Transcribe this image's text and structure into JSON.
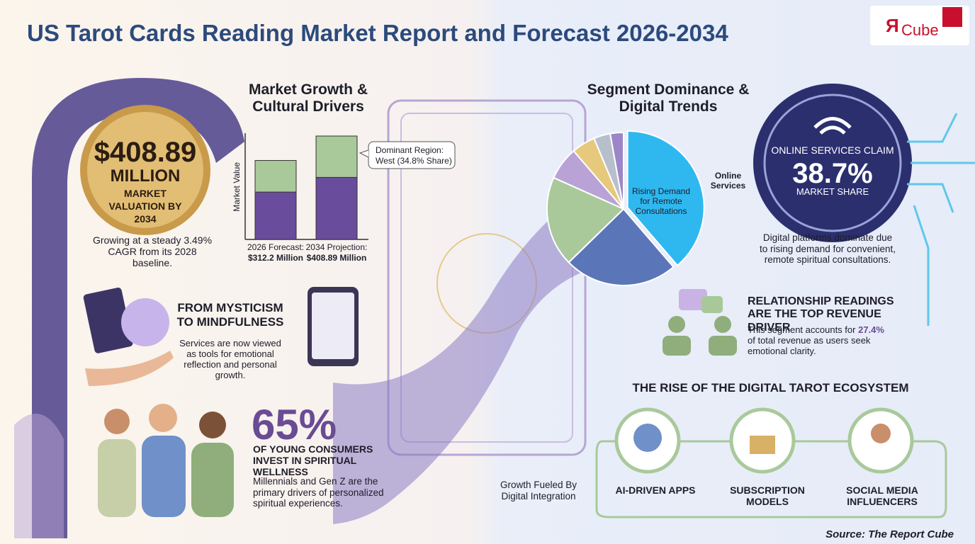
{
  "title": "US Tarot Cards Reading Market Report and Forecast 2026-2034",
  "logo": {
    "mark": "Я",
    "text": "Cube"
  },
  "valuation": {
    "amount": "$408.89",
    "unit": "MILLION",
    "caption": "MARKET VALUATION BY 2034",
    "note": "Growing at a steady 3.49% CAGR from its 2028 baseline."
  },
  "growth": {
    "heading": "Market Growth & Cultural Drivers",
    "axis_label": "Market Value",
    "callout": {
      "label": "Dominant Region:",
      "value": "West (34.8% Share)"
    },
    "bars": [
      {
        "label": "2026 Forecast:",
        "value_label": "$312.2 Million",
        "value": 312.2
      },
      {
        "label": "2034 Projection:",
        "value_label": "$408.89 Million",
        "value": 408.89
      }
    ]
  },
  "mysticism": {
    "heading": "FROM MYSTICISM TO MINDFULNESS",
    "text": "Services are now viewed as tools for emotional reflection and personal growth."
  },
  "young": {
    "stat": "65%",
    "heading": "OF YOUNG CONSUMERS INVEST IN SPIRITUAL WELLNESS",
    "text": "Millennials and Gen Z are the primary drivers of personalized spiritual experiences."
  },
  "segment": {
    "heading": "Segment Dominance & Digital Trends",
    "slice_label": "Rising Demand for Remote Consultations",
    "legend": "Online Services",
    "pie": {
      "values": [
        38.7,
        24,
        19,
        7,
        5,
        3.5,
        2.8
      ],
      "colors": [
        "#2fb8f0",
        "#5b76b8",
        "#a9c99b",
        "#b9a3d6",
        "#e6c97c",
        "#b8bfcc",
        "#9d86c7"
      ]
    }
  },
  "online": {
    "claim": "ONLINE SERVICES CLAIM",
    "stat": "38.7%",
    "caption": "MARKET SHARE",
    "text": "Digital platforms dominate due to rising demand for convenient, remote spiritual consultations."
  },
  "relationship": {
    "heading": "RELATIONSHIP READINGS ARE THE TOP REVENUE DRIVER",
    "text_before": "This segment accounts for",
    "highlight": "27.4%",
    "text_after": "of total revenue as users seek emotional clarity."
  },
  "ecosystem": {
    "heading": "THE RISE OF THE DIGITAL TAROT ECOSYSTEM",
    "note": "Growth Fueled By Digital Integration",
    "items": [
      "AI-DRIVEN APPS",
      "SUBSCRIPTION MODELS",
      "SOCIAL MEDIA INFLUENCERS"
    ]
  },
  "source": "Source: The Report Cube"
}
